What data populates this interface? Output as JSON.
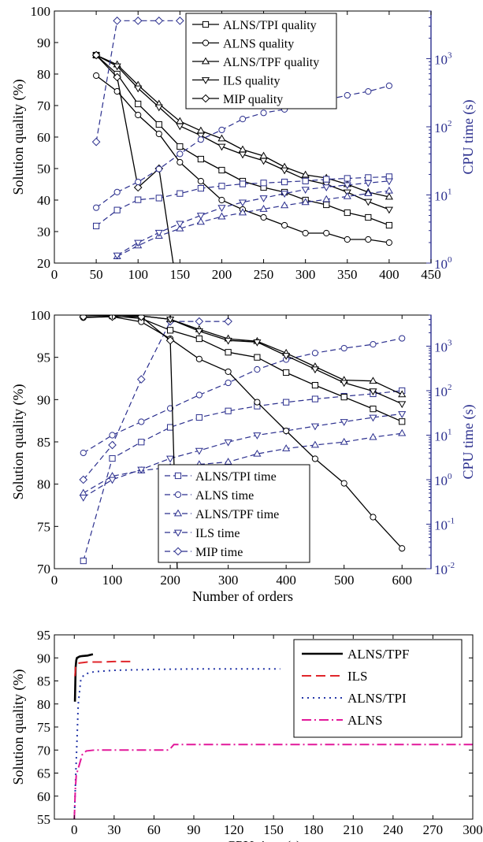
{
  "chart_data": [
    {
      "type": "line",
      "ylabel": "Solution quality (%)",
      "y2label": "CPU time (s)",
      "xlabel": "",
      "xlim": [
        0,
        450
      ],
      "ylim": [
        20,
        100
      ],
      "y2scale": "log",
      "y2lim": [
        1,
        5000
      ],
      "x_ticks": [
        "0",
        "50",
        "100",
        "150",
        "200",
        "250",
        "300",
        "350",
        "400",
        "450"
      ],
      "y_ticks": [
        "20",
        "30",
        "40",
        "50",
        "60",
        "70",
        "80",
        "90",
        "100"
      ],
      "y2_tick_values": [
        1,
        10,
        100,
        1000
      ],
      "legend_position": "top-center",
      "series": [
        {
          "name": "ALNS/TPI quality",
          "axis": "left",
          "marker": "square",
          "x": [
            50,
            75,
            100,
            125,
            150,
            175,
            200,
            225,
            250,
            275,
            300,
            325,
            350,
            375,
            400
          ],
          "values": [
            86,
            80,
            70.5,
            64,
            57,
            53,
            49.5,
            46,
            44,
            42.5,
            40,
            38.5,
            36,
            34.5,
            32
          ]
        },
        {
          "name": "ALNS quality",
          "axis": "left",
          "marker": "circle",
          "x": [
            50,
            75,
            100,
            125,
            150,
            175,
            200,
            225,
            250,
            275,
            300,
            325,
            350,
            375,
            400
          ],
          "values": [
            79.5,
            74.5,
            67,
            61,
            52,
            46,
            40,
            37,
            34.5,
            32,
            29.5,
            29.5,
            27.5,
            27.5,
            26.5
          ]
        },
        {
          "name": "ALNS/TPF quality",
          "axis": "left",
          "marker": "triangle-up",
          "x": [
            50,
            75,
            100,
            125,
            150,
            175,
            200,
            225,
            250,
            275,
            300,
            325,
            350,
            375,
            400
          ],
          "values": [
            86,
            83,
            76.5,
            70.5,
            65,
            62,
            59.5,
            56,
            54,
            50.5,
            48,
            47,
            45,
            42.5,
            41
          ]
        },
        {
          "name": "ILS quality",
          "axis": "left",
          "marker": "triangle-down",
          "x": [
            50,
            75,
            100,
            125,
            150,
            175,
            200,
            225,
            250,
            275,
            300,
            325,
            350,
            375,
            400
          ],
          "values": [
            86,
            82.5,
            75.5,
            69.5,
            63.5,
            60.5,
            57,
            54.5,
            52.5,
            49.5,
            46.5,
            45,
            42.5,
            39.5,
            37
          ]
        },
        {
          "name": "MIP quality",
          "axis": "left",
          "marker": "diamond",
          "x": [
            50,
            75,
            100,
            125,
            142
          ],
          "values": [
            86,
            79,
            44,
            50,
            20
          ]
        },
        {
          "axis": "right",
          "marker": "square",
          "dashed": true,
          "x": [
            50,
            75,
            100,
            125,
            150,
            175,
            200,
            225,
            250,
            275,
            300,
            325,
            350,
            375,
            400
          ],
          "values": [
            3.5,
            6,
            8.5,
            9,
            10.5,
            12.5,
            13.5,
            14.5,
            15,
            15.5,
            16,
            17,
            17.5,
            18,
            18.5
          ]
        },
        {
          "axis": "right",
          "marker": "circle",
          "dashed": true,
          "x": [
            50,
            75,
            100,
            125,
            150,
            175,
            200,
            225,
            250,
            275,
            300,
            325,
            350,
            375,
            400
          ],
          "values": [
            6.5,
            11,
            15.5,
            24,
            40,
            65,
            90,
            130,
            160,
            180,
            210,
            250,
            290,
            330,
            400
          ]
        },
        {
          "axis": "right",
          "marker": "triangle-up",
          "dashed": true,
          "x": [
            75,
            100,
            125,
            150,
            175,
            200,
            225,
            250,
            275,
            300,
            325,
            350,
            375,
            400
          ],
          "values": [
            1.25,
            1.8,
            2.5,
            3.2,
            4,
            4.8,
            5.5,
            6.2,
            7,
            7.8,
            8.6,
            9.5,
            10.5,
            11.5
          ]
        },
        {
          "axis": "right",
          "marker": "triangle-down",
          "dashed": true,
          "x": [
            75,
            100,
            125,
            150,
            175,
            200,
            225,
            250,
            275,
            300,
            325,
            350,
            375,
            400
          ],
          "values": [
            1.3,
            2,
            2.8,
            3.8,
            5,
            6.5,
            7.8,
            9,
            10.5,
            12,
            13,
            14,
            15,
            16
          ]
        },
        {
          "axis": "right",
          "marker": "diamond",
          "dashed": true,
          "x": [
            50,
            75,
            100,
            125,
            150
          ],
          "values": [
            60,
            3600,
            3600,
            3600,
            3600
          ]
        }
      ]
    },
    {
      "type": "line",
      "xlabel": "Number of orders",
      "ylabel": "Solution quality (%)",
      "y2label": "CPU time (s)",
      "xlim": [
        0,
        650
      ],
      "ylim": [
        70,
        100
      ],
      "y2scale": "log",
      "y2lim": [
        0.01,
        5000
      ],
      "x_ticks": [
        "0",
        "100",
        "200",
        "300",
        "400",
        "500",
        "600"
      ],
      "y_ticks": [
        "70",
        "75",
        "80",
        "85",
        "90",
        "95",
        "100"
      ],
      "y2_tick_values": [
        0.01,
        0.1,
        1,
        10,
        100,
        1000
      ],
      "legend_position": "bottom-center",
      "series": [
        {
          "name": "ALNS/TPI time",
          "axis": "right",
          "marker": "square",
          "dashed": true,
          "x": [
            50,
            100,
            150,
            200,
            250,
            300,
            350,
            400,
            450,
            500,
            550,
            600
          ],
          "values": [
            0.015,
            3,
            7,
            15,
            25,
            35,
            45,
            55,
            65,
            75,
            85,
            100
          ]
        },
        {
          "name": "ALNS time",
          "axis": "right",
          "marker": "circle",
          "dashed": true,
          "x": [
            50,
            100,
            150,
            200,
            250,
            300,
            350,
            400,
            450,
            500,
            550,
            600
          ],
          "values": [
            4,
            10,
            20,
            40,
            80,
            150,
            300,
            500,
            700,
            900,
            1100,
            1500
          ]
        },
        {
          "name": "ALNS/TPF time",
          "axis": "right",
          "marker": "triangle-up",
          "dashed": true,
          "x": [
            50,
            100,
            150,
            200,
            250,
            300,
            350,
            400,
            450,
            500,
            550,
            600
          ],
          "values": [
            0.5,
            1.2,
            1.6,
            1.9,
            2.2,
            2.5,
            3.8,
            5,
            6,
            7,
            9,
            11
          ]
        },
        {
          "name": "ILS time",
          "axis": "right",
          "marker": "triangle-down",
          "dashed": true,
          "x": [
            50,
            100,
            150,
            200,
            250,
            300,
            350,
            400,
            450,
            500,
            550,
            600
          ],
          "values": [
            0.4,
            1,
            1.7,
            3,
            4.5,
            7,
            10,
            12.5,
            16,
            20,
            25,
            30
          ]
        },
        {
          "name": "MIP time",
          "axis": "right",
          "marker": "diamond",
          "dashed": true,
          "x": [
            50,
            100,
            150,
            200,
            250,
            300
          ],
          "values": [
            1,
            6,
            180,
            3600,
            3600,
            3600
          ]
        },
        {
          "axis": "left",
          "marker": "square",
          "x": [
            50,
            100,
            150,
            200,
            250,
            300,
            350,
            400,
            450,
            500,
            550,
            600
          ],
          "values": [
            100,
            99.9,
            99.6,
            98.2,
            97.2,
            95.6,
            95,
            93.2,
            91.7,
            90.3,
            88.9,
            87.4
          ]
        },
        {
          "axis": "left",
          "marker": "circle",
          "x": [
            50,
            100,
            150,
            200,
            250,
            300,
            350,
            400,
            450,
            500,
            550,
            600
          ],
          "values": [
            99.7,
            99.8,
            99.2,
            97.2,
            94.8,
            93.3,
            89.7,
            86.3,
            83,
            80.1,
            76.1,
            72.4
          ]
        },
        {
          "axis": "left",
          "marker": "triangle-up",
          "x": [
            50,
            100,
            150,
            200,
            250,
            300,
            350,
            400,
            450,
            500,
            550,
            600
          ],
          "values": [
            100,
            100,
            99.9,
            99.5,
            98.3,
            97.2,
            96.9,
            95.5,
            93.9,
            92.3,
            92.2,
            90.6
          ]
        },
        {
          "axis": "left",
          "marker": "triangle-down",
          "x": [
            50,
            100,
            150,
            200,
            250,
            300,
            350,
            400,
            450,
            500,
            550,
            600
          ],
          "values": [
            100,
            100,
            99.9,
            99.5,
            98.1,
            97,
            96.8,
            95.2,
            93.6,
            92,
            91,
            89.5
          ]
        },
        {
          "axis": "left",
          "marker": "diamond",
          "x": [
            50,
            100,
            150,
            200,
            212
          ],
          "values": [
            99.8,
            99.8,
            99.8,
            97,
            70
          ]
        }
      ]
    },
    {
      "type": "line",
      "xlabel": "CPU time (s)",
      "ylabel": "Solution quality (%)",
      "xlim": [
        -15,
        300
      ],
      "ylim": [
        55,
        95
      ],
      "x_ticks": [
        "0",
        "30",
        "60",
        "90",
        "120",
        "150",
        "180",
        "210",
        "240",
        "270",
        "300"
      ],
      "y_ticks": [
        "55",
        "60",
        "65",
        "70",
        "75",
        "80",
        "85",
        "90",
        "95"
      ],
      "legend_position": "top-right",
      "series": [
        {
          "name": "ALNS/TPF",
          "style": "solid",
          "color": "#000000",
          "x": [
            0.5,
            1,
            1.5,
            2,
            4,
            6,
            10,
            14
          ],
          "values": [
            80.5,
            88,
            89.5,
            90,
            90.3,
            90.4,
            90.5,
            90.8
          ]
        },
        {
          "name": "ILS",
          "style": "dashed",
          "color": "#e0262b",
          "x": [
            0.5,
            1,
            2,
            4,
            10,
            20,
            30,
            43
          ],
          "values": [
            86,
            88,
            88.7,
            88.9,
            89.1,
            89.1,
            89.2,
            89.2
          ]
        },
        {
          "name": "ALNS/TPI",
          "style": "dotted",
          "color": "#2436a8",
          "x": [
            0,
            1,
            2,
            3,
            5,
            8,
            15,
            30,
            60,
            90,
            120,
            150,
            155
          ],
          "values": [
            55,
            64,
            72,
            80,
            85.5,
            86.5,
            87,
            87.3,
            87.5,
            87.6,
            87.6,
            87.6,
            87.6
          ]
        },
        {
          "name": "ALNS",
          "style": "dashdot",
          "color": "#e2189a",
          "x": [
            0,
            0.8,
            1.5,
            3,
            6,
            9,
            15,
            40,
            70,
            72,
            75,
            150,
            250,
            300
          ],
          "values": [
            55,
            61.5,
            64.5,
            66,
            69,
            69.8,
            70,
            70,
            70,
            70.2,
            71.2,
            71.2,
            71.2,
            71.2
          ]
        }
      ]
    }
  ]
}
